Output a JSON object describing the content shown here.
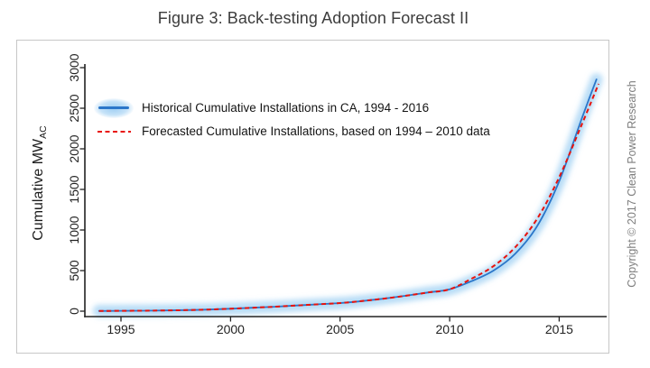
{
  "figure": {
    "title": "Figure 3: Back-testing Adoption Forecast II",
    "copyright": "Copyright © 2017 Clean Power Research"
  },
  "chart_data": {
    "type": "line",
    "title": "Figure 3: Back-testing Adoption Forecast II",
    "xlabel": "",
    "ylabel": "Cumulative MW_AC",
    "ylabel_main": "Cumulative MW",
    "ylabel_sub": "AC",
    "xlim": [
      1993.7,
      2017.2
    ],
    "ylim": [
      0,
      3000
    ],
    "grid": false,
    "legend_position": "top-left",
    "x_ticks": [
      1995,
      2000,
      2005,
      2010,
      2015
    ],
    "x_tick_labels": [
      "1995",
      "2000",
      "2005",
      "2010",
      "2015"
    ],
    "y_ticks": [
      0,
      500,
      1000,
      1500,
      2000,
      2500,
      3000
    ],
    "y_tick_labels": [
      "0",
      "500",
      "1000",
      "1500",
      "2000",
      "2500",
      "3000"
    ],
    "series": [
      {
        "name": "Historical Cumulative Installations in CA, 1994 - 2016",
        "style": "solid-with-glow",
        "color": "#2b76c9",
        "glow_color": "#a9d5f4",
        "x": [
          1994,
          1995,
          1996,
          1997,
          1998,
          1999,
          2000,
          2001,
          2002,
          2003,
          2004,
          2005,
          2006,
          2007,
          2008,
          2009,
          2010,
          2011,
          2012,
          2013,
          2014,
          2015,
          2016,
          2016.7
        ],
        "y": [
          2,
          4,
          6,
          9,
          13,
          20,
          30,
          42,
          55,
          70,
          85,
          100,
          125,
          155,
          190,
          230,
          270,
          370,
          500,
          710,
          1050,
          1600,
          2350,
          2855
        ]
      },
      {
        "name": "Forecasted Cumulative Installations, based on 1994 – 2010 data",
        "style": "dashed",
        "color": "#e8130d",
        "x": [
          1994,
          1995,
          1996,
          1997,
          1998,
          1999,
          2000,
          2001,
          2002,
          2003,
          2004,
          2005,
          2006,
          2007,
          2008,
          2009,
          2010,
          2011,
          2012,
          2013,
          2014,
          2015,
          2016,
          2016.8
        ],
        "y": [
          2,
          4,
          6,
          9,
          13,
          20,
          30,
          42,
          55,
          70,
          85,
          100,
          125,
          155,
          190,
          230,
          270,
          400,
          555,
          790,
          1140,
          1650,
          2280,
          2800
        ]
      }
    ]
  }
}
